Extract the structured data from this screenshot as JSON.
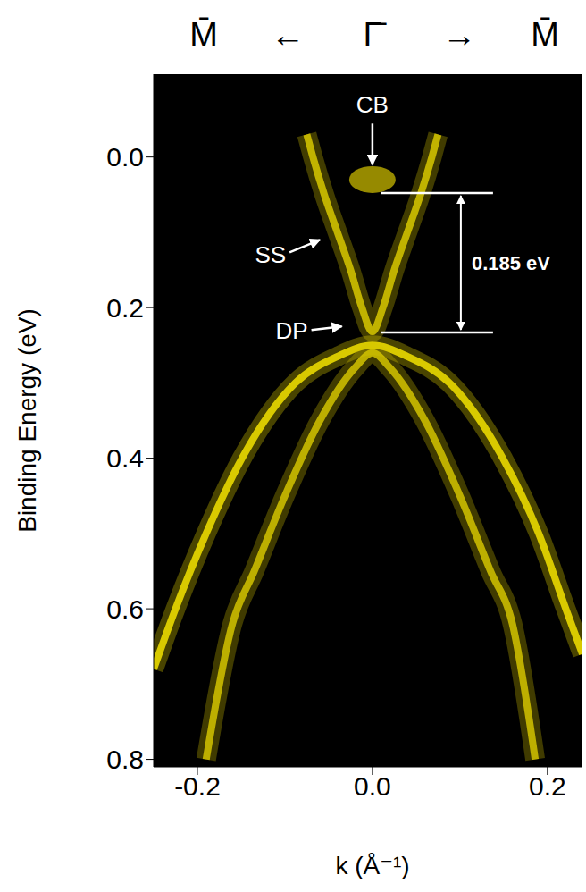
{
  "chart_data": {
    "type": "line",
    "title": "M̄ ← Γ̄ → M̄",
    "x_label": "k (Å⁻¹)",
    "y_label": "Binding Energy (eV)",
    "xlim": [
      -0.25,
      0.24
    ],
    "ylim": [
      -0.11,
      0.81
    ],
    "xticks": [
      -0.2,
      {
        "value": 0,
        "label": "0.0"
      },
      0.2
    ],
    "yticks": [
      {
        "value": 0,
        "label": "0.0"
      },
      0.2,
      0.4,
      0.6,
      0.8
    ],
    "grid": false,
    "tick_labels": true,
    "series": [
      {
        "type": "line",
        "color": "#d8c800",
        "x": [
          -0.075,
          -0.068,
          -0.055,
          -0.04,
          -0.025,
          -0.012,
          0,
          0.012,
          0.025,
          0.04,
          0.055,
          0.068,
          0.075
        ],
        "values": [
          -0.03,
          0.0,
          0.05,
          0.1,
          0.15,
          0.2,
          0.232,
          0.2,
          0.15,
          0.1,
          0.05,
          0.0,
          -0.03
        ]
      },
      {
        "type": "line",
        "color": "#f2e200",
        "x": [
          -0.25,
          -0.225,
          -0.19,
          -0.149,
          -0.088,
          -0.04,
          0,
          0.04,
          0.088,
          0.149,
          0.19,
          0.221,
          0.24
        ],
        "values": [
          0.68,
          0.6,
          0.5,
          0.4,
          0.3,
          0.265,
          0.25,
          0.265,
          0.3,
          0.4,
          0.5,
          0.6,
          0.66
        ]
      },
      {
        "type": "line",
        "color": "#d4c400",
        "x": [
          -0.19,
          -0.16,
          -0.135,
          -0.1,
          -0.06,
          -0.02,
          0,
          0.02,
          0.06,
          0.1,
          0.135,
          0.16,
          0.186
        ],
        "values": [
          0.8,
          0.62,
          0.55,
          0.45,
          0.35,
          0.28,
          0.26,
          0.28,
          0.35,
          0.45,
          0.55,
          0.62,
          0.8
        ]
      },
      {
        "type": "scatter",
        "color": "#c8b800",
        "x": [
          0
        ],
        "values": [
          0.03
        ]
      }
    ],
    "annotations": [
      {
        "text": "CB",
        "x": 0,
        "y": 0.015
      },
      {
        "text": "SS",
        "x": -0.06,
        "y": 0.11
      },
      {
        "text": "DP",
        "x": -0.035,
        "y": 0.225
      }
    ],
    "bracket": {
      "text": "0.185 eV",
      "from": 0.048,
      "to": 0.233
    }
  }
}
